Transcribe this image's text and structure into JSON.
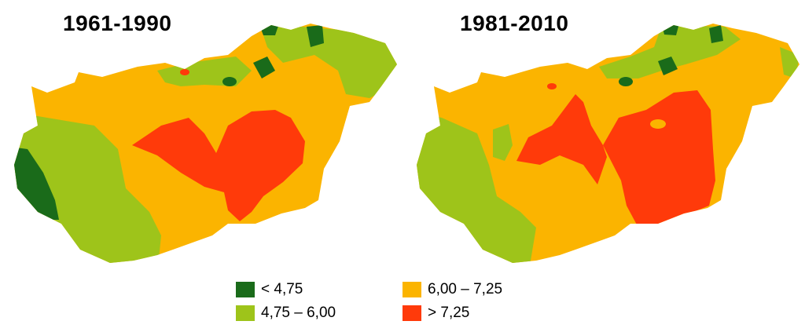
{
  "colors": {
    "c1": "#1a6b1a",
    "c2": "#9ec41a",
    "c3": "#fbb400",
    "c4": "#ff3a0a"
  },
  "maps": [
    {
      "title": "1961-1990"
    },
    {
      "title": "1981-2010"
    }
  ],
  "legend": [
    {
      "label": "< 4,75",
      "color_key": "c1"
    },
    {
      "label": "4,75 – 6,00",
      "color_key": "c2"
    },
    {
      "label": "6,00 – 7,25",
      "color_key": "c3"
    },
    {
      "label": "> 7,25",
      "color_key": "c4"
    }
  ]
}
